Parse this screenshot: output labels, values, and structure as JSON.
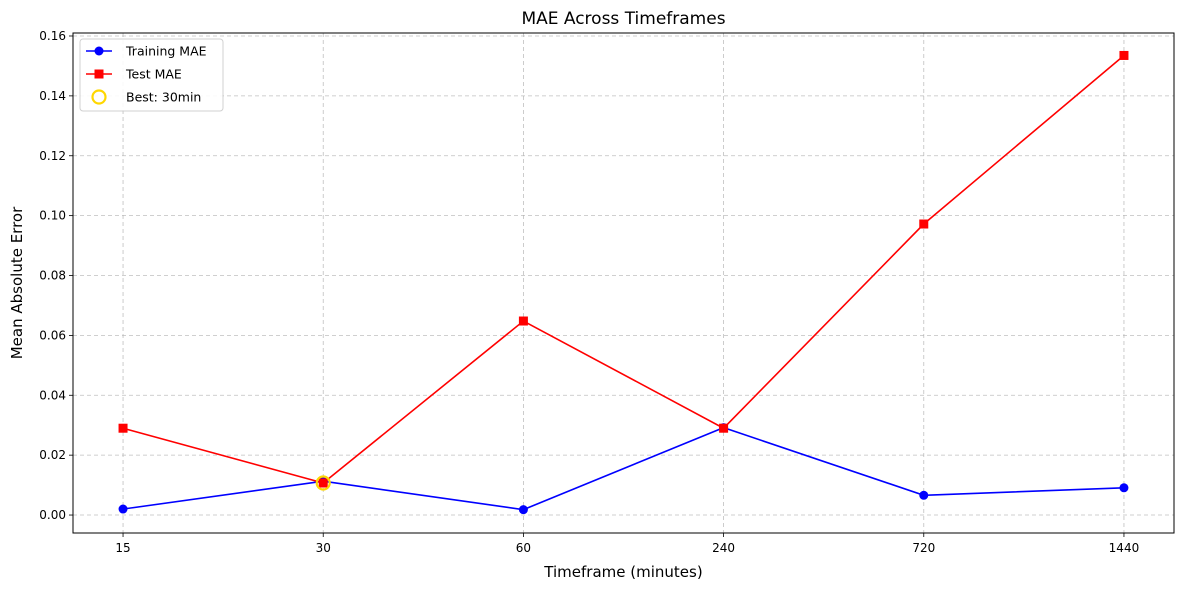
{
  "chart_data": {
    "type": "line",
    "title": "MAE Across Timeframes",
    "xlabel": "Timeframe (minutes)",
    "ylabel": "Mean Absolute Error",
    "categories": [
      "15",
      "30",
      "60",
      "240",
      "720",
      "1440"
    ],
    "ylim": [
      -0.006,
      0.161
    ],
    "yticks": [
      0.0,
      0.02,
      0.04,
      0.06,
      0.08,
      0.1,
      0.12,
      0.14,
      0.16
    ],
    "ytick_labels": [
      "0.00",
      "0.02",
      "0.04",
      "0.06",
      "0.08",
      "0.10",
      "0.12",
      "0.14",
      "0.16"
    ],
    "grid": true,
    "legend_position": "top-left",
    "series": [
      {
        "name": "Training MAE",
        "marker": "circle",
        "color": "#0000ff",
        "values": [
          0.002,
          0.0113,
          0.0018,
          0.0292,
          0.0066,
          0.0091
        ]
      },
      {
        "name": "Test MAE",
        "marker": "square",
        "color": "#ff0000",
        "values": [
          0.029,
          0.0107,
          0.0648,
          0.029,
          0.0972,
          0.1535
        ]
      }
    ],
    "highlight": {
      "name": "Best: 30min",
      "category": "30",
      "value": 0.0107,
      "color": "#ffd700",
      "marker": "open-circle"
    }
  }
}
